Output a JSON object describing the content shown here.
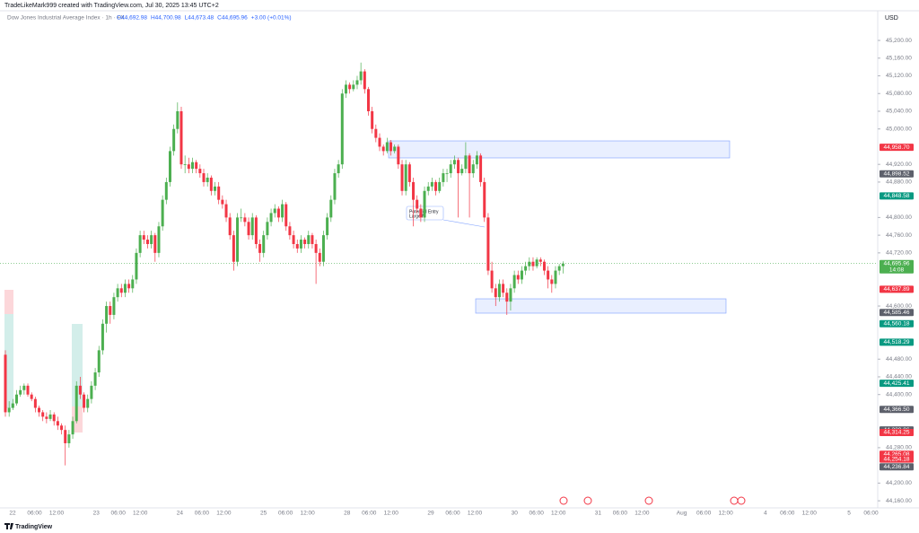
{
  "header": {
    "author_line": "TradeLikeMark999 created with TradingView.com, Jul 30, 2025 13:45 UTC+2",
    "symbol": "Dow Jones Industrial Average Index · 1h · FX ·",
    "ohlc": [
      "O44,692.98",
      "H44,700.98",
      "L44,673.48",
      "C44,695.96"
    ],
    "change": "+3.00 (+0.01%)"
  },
  "currency": "USD",
  "brand": "TradingView",
  "chart_data": {
    "type": "candlestick",
    "colors": {
      "up": "#4caf50",
      "down": "#f23645"
    },
    "ylim": [
      44144,
      45267
    ],
    "yticks": [
      {
        "value": 45200,
        "label": "45,200.00"
      },
      {
        "value": 45160,
        "label": "45,160.00"
      },
      {
        "value": 45120,
        "label": "45,120.00"
      },
      {
        "value": 45080,
        "label": "45,080.00"
      },
      {
        "value": 45040,
        "label": "45,040.00"
      },
      {
        "value": 45000,
        "label": "45,000.00"
      },
      {
        "value": 44920,
        "label": "44,920.00"
      },
      {
        "value": 44880,
        "label": "44,880.00"
      },
      {
        "value": 44800,
        "label": "44,800.00"
      },
      {
        "value": 44760,
        "label": "44,760.00"
      },
      {
        "value": 44720,
        "label": "44,720.00"
      },
      {
        "value": 44600,
        "label": "44,600.00"
      },
      {
        "value": 44480,
        "label": "44,480.00"
      },
      {
        "value": 44440,
        "label": "44,440.00"
      },
      {
        "value": 44400,
        "label": "44,400.00"
      },
      {
        "value": 44280,
        "label": "44,280.00"
      },
      {
        "value": 44200,
        "label": "44,200.00"
      },
      {
        "value": 44160,
        "label": "44,160.00"
      }
    ],
    "xtick_labels": [
      "22",
      "06:00",
      "12:00",
      "23",
      "06:00",
      "12:00",
      "24",
      "06:00",
      "12:00",
      "25",
      "06:00",
      "12:00",
      "28",
      "06:00",
      "12:00",
      "29",
      "06:00",
      "12:00",
      "30",
      "06:00",
      "12:00",
      "31",
      "06:00",
      "12:00",
      "Aug",
      "06:00",
      "12:00",
      "4",
      "06:00",
      "12:00",
      "5",
      "06:00"
    ],
    "candles": [
      [
        44490,
        44500,
        44350,
        44360
      ],
      [
        44360,
        44385,
        44350,
        44370
      ],
      [
        44370,
        44390,
        44365,
        44380
      ],
      [
        44380,
        44410,
        44375,
        44400
      ],
      [
        44400,
        44420,
        44395,
        44410
      ],
      [
        44410,
        44425,
        44400,
        44420
      ],
      [
        44420,
        44425,
        44395,
        44400
      ],
      [
        44400,
        44405,
        44385,
        44390
      ],
      [
        44390,
        44395,
        44360,
        44370
      ],
      [
        44370,
        44375,
        44350,
        44360
      ],
      [
        44360,
        44365,
        44340,
        44350
      ],
      [
        44350,
        44360,
        44335,
        44345
      ],
      [
        44345,
        44365,
        44340,
        44355
      ],
      [
        44355,
        44360,
        44330,
        44340
      ],
      [
        44340,
        44350,
        44320,
        44330
      ],
      [
        44330,
        44335,
        44310,
        44320
      ],
      [
        44320,
        44330,
        44240,
        44290
      ],
      [
        44290,
        44320,
        44280,
        44310
      ],
      [
        44310,
        44350,
        44300,
        44340
      ],
      [
        44340,
        44430,
        44335,
        44420
      ],
      [
        44420,
        44440,
        44390,
        44400
      ],
      [
        44400,
        44405,
        44360,
        44370
      ],
      [
        44370,
        44400,
        44360,
        44390
      ],
      [
        44390,
        44430,
        44380,
        44420
      ],
      [
        44420,
        44460,
        44410,
        44450
      ],
      [
        44450,
        44510,
        44440,
        44500
      ],
      [
        44500,
        44570,
        44490,
        44560
      ],
      [
        44560,
        44610,
        44540,
        44600
      ],
      [
        44600,
        44610,
        44560,
        44580
      ],
      [
        44580,
        44630,
        44570,
        44620
      ],
      [
        44620,
        44650,
        44610,
        44640
      ],
      [
        44640,
        44650,
        44620,
        44630
      ],
      [
        44630,
        44660,
        44620,
        44650
      ],
      [
        44650,
        44660,
        44630,
        44640
      ],
      [
        44640,
        44670,
        44630,
        44660
      ],
      [
        44660,
        44730,
        44650,
        44720
      ],
      [
        44720,
        44770,
        44710,
        44760
      ],
      [
        44760,
        44770,
        44740,
        44750
      ],
      [
        44750,
        44760,
        44730,
        44740
      ],
      [
        44740,
        44770,
        44730,
        44760
      ],
      [
        44760,
        44765,
        44700,
        44720
      ],
      [
        44720,
        44790,
        44710,
        44780
      ],
      [
        44780,
        44850,
        44770,
        44840
      ],
      [
        44840,
        44890,
        44830,
        44880
      ],
      [
        44880,
        44960,
        44870,
        44950
      ],
      [
        44950,
        45010,
        44940,
        45000
      ],
      [
        45000,
        45060,
        44990,
        45040
      ],
      [
        45040,
        45050,
        44910,
        44920
      ],
      [
        44920,
        44940,
        44900,
        44920
      ],
      [
        44920,
        44935,
        44900,
        44910
      ],
      [
        44910,
        44935,
        44900,
        44925
      ],
      [
        44925,
        44930,
        44900,
        44910
      ],
      [
        44910,
        44920,
        44890,
        44900
      ],
      [
        44900,
        44910,
        44870,
        44880
      ],
      [
        44880,
        44900,
        44870,
        44890
      ],
      [
        44890,
        44895,
        44850,
        44860
      ],
      [
        44860,
        44880,
        44850,
        44870
      ],
      [
        44870,
        44880,
        44830,
        44840
      ],
      [
        44840,
        44850,
        44820,
        44830
      ],
      [
        44830,
        44840,
        44790,
        44800
      ],
      [
        44800,
        44810,
        44750,
        44760
      ],
      [
        44760,
        44770,
        44680,
        44700
      ],
      [
        44700,
        44810,
        44690,
        44800
      ],
      [
        44800,
        44820,
        44790,
        44800
      ],
      [
        44800,
        44810,
        44780,
        44790
      ],
      [
        44790,
        44800,
        44750,
        44760
      ],
      [
        44760,
        44810,
        44750,
        44800
      ],
      [
        44800,
        44805,
        44730,
        44740
      ],
      [
        44740,
        44750,
        44700,
        44720
      ],
      [
        44720,
        44770,
        44710,
        44760
      ],
      [
        44760,
        44800,
        44750,
        44790
      ],
      [
        44790,
        44820,
        44780,
        44810
      ],
      [
        44810,
        44830,
        44800,
        44820
      ],
      [
        44820,
        44825,
        44790,
        44800
      ],
      [
        44800,
        44840,
        44790,
        44830
      ],
      [
        44830,
        44835,
        44770,
        44780
      ],
      [
        44780,
        44790,
        44750,
        44760
      ],
      [
        44760,
        44770,
        44730,
        44740
      ],
      [
        44740,
        44750,
        44720,
        44730
      ],
      [
        44730,
        44760,
        44720,
        44750
      ],
      [
        44750,
        44755,
        44730,
        44740
      ],
      [
        44740,
        44770,
        44730,
        44760
      ],
      [
        44760,
        44765,
        44730,
        44740
      ],
      [
        44740,
        44750,
        44650,
        44720
      ],
      [
        44720,
        44730,
        44690,
        44700
      ],
      [
        44700,
        44770,
        44690,
        44760
      ],
      [
        44760,
        44810,
        44750,
        44800
      ],
      [
        44800,
        44850,
        44790,
        44840
      ],
      [
        44840,
        44910,
        44830,
        44900
      ],
      [
        44900,
        44930,
        44890,
        44920
      ],
      [
        44920,
        45090,
        44910,
        45080
      ],
      [
        45080,
        45110,
        45070,
        45100
      ],
      [
        45100,
        45105,
        45080,
        45090
      ],
      [
        45090,
        45110,
        45085,
        45100
      ],
      [
        45100,
        45120,
        45090,
        45110
      ],
      [
        45110,
        45150,
        45100,
        45130
      ],
      [
        45130,
        45135,
        45080,
        45090
      ],
      [
        45090,
        45095,
        45030,
        45040
      ],
      [
        45040,
        45050,
        44990,
        45000
      ],
      [
        45000,
        45010,
        44970,
        44980
      ],
      [
        44980,
        44990,
        44950,
        44960
      ],
      [
        44960,
        44965,
        44940,
        44950
      ],
      [
        44950,
        44980,
        44945,
        44970
      ],
      [
        44970,
        44975,
        44940,
        44950
      ],
      [
        44950,
        44965,
        44945,
        44960
      ],
      [
        44960,
        44965,
        44910,
        44920
      ],
      [
        44920,
        44930,
        44850,
        44860
      ],
      [
        44860,
        44930,
        44850,
        44920
      ],
      [
        44920,
        44925,
        44870,
        44880
      ],
      [
        44880,
        44890,
        44780,
        44840
      ],
      [
        44840,
        44850,
        44810,
        44820
      ],
      [
        44820,
        44830,
        44790,
        44800
      ],
      [
        44800,
        44870,
        44790,
        44860
      ],
      [
        44860,
        44880,
        44850,
        44870
      ],
      [
        44870,
        44890,
        44860,
        44880
      ],
      [
        44880,
        44885,
        44850,
        44860
      ],
      [
        44860,
        44890,
        44855,
        44880
      ],
      [
        44880,
        44910,
        44870,
        44900
      ],
      [
        44900,
        44910,
        44880,
        44900
      ],
      [
        44900,
        44930,
        44890,
        44920
      ],
      [
        44920,
        44940,
        44910,
        44930
      ],
      [
        44930,
        44935,
        44800,
        44900
      ],
      [
        44900,
        44920,
        44895,
        44910
      ],
      [
        44910,
        44970,
        44900,
        44940
      ],
      [
        44940,
        44945,
        44800,
        44900
      ],
      [
        44900,
        44930,
        44890,
        44920
      ],
      [
        44920,
        44950,
        44910,
        44940
      ],
      [
        44940,
        44945,
        44870,
        44880
      ],
      [
        44880,
        44890,
        44790,
        44800
      ],
      [
        44800,
        44810,
        44670,
        44680
      ],
      [
        44680,
        44700,
        44630,
        44640
      ],
      [
        44640,
        44650,
        44600,
        44620
      ],
      [
        44620,
        44660,
        44610,
        44650
      ],
      [
        44650,
        44660,
        44620,
        44630
      ],
      [
        44630,
        44640,
        44580,
        44610
      ],
      [
        44610,
        44650,
        44590,
        44640
      ],
      [
        44640,
        44680,
        44630,
        44670
      ],
      [
        44670,
        44680,
        44650,
        44660
      ],
      [
        44660,
        44690,
        44650,
        44680
      ],
      [
        44680,
        44700,
        44670,
        44690
      ],
      [
        44690,
        44710,
        44680,
        44700
      ],
      [
        44700,
        44710,
        44680,
        44690
      ],
      [
        44690,
        44710,
        44685,
        44705
      ],
      [
        44705,
        44710,
        44690,
        44700
      ],
      [
        44700,
        44705,
        44670,
        44680
      ],
      [
        44680,
        44690,
        44640,
        44660
      ],
      [
        44660,
        44670,
        44630,
        44650
      ],
      [
        44650,
        44690,
        44640,
        44680
      ],
      [
        44680,
        44695,
        44670,
        44690
      ],
      [
        44690,
        44700.98,
        44673.48,
        44695.96
      ]
    ],
    "current_price": {
      "value": 44695.96,
      "label": "44,695.96",
      "countdown": "14:08",
      "color": "#4caf50"
    },
    "price_labels": [
      {
        "value": 44958.7,
        "label": "44,958.70",
        "color": "#f23645"
      },
      {
        "value": 44898.52,
        "label": "44,898.52",
        "color": "#5d606b"
      },
      {
        "value": 44848.58,
        "label": "44,848.58",
        "color": "#089981"
      },
      {
        "value": 44637.89,
        "label": "44,637.89",
        "color": "#f23645"
      },
      {
        "value": 44585.46,
        "label": "44,585.46",
        "color": "#5d606b"
      },
      {
        "value": 44560.18,
        "label": "44,560.18",
        "color": "#089981"
      },
      {
        "value": 44518.29,
        "label": "44,518.29",
        "color": "#089981"
      },
      {
        "value": 44425.41,
        "label": "44,425.41",
        "color": "#089981"
      },
      {
        "value": 44366.5,
        "label": "44,366.50",
        "color": "#5d606b"
      },
      {
        "value": 44320.06,
        "label": "44,320.06",
        "color": "#5d606b"
      },
      {
        "value": 44314.25,
        "label": "44,314.25",
        "color": "#f23645"
      },
      {
        "value": 44265.08,
        "label": "44,265.08",
        "color": "#f23645"
      },
      {
        "value": 44254.18,
        "label": "44,254.18",
        "color": "#f23645"
      },
      {
        "value": 44236.84,
        "label": "44,236.84",
        "color": "#5d606b"
      }
    ],
    "annotation": [
      "Potential Entry",
      "Large M"
    ]
  }
}
